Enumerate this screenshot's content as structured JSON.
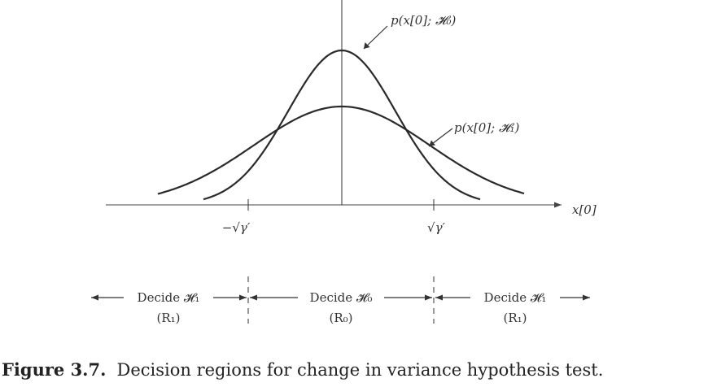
{
  "figure": {
    "labels": {
      "h0_curve": "p(x[0]; 𝓗₀)",
      "h1_curve": "p(x[0]; 𝓗₁)",
      "x_axis": "x[0]",
      "neg_threshold": "−√γ′",
      "pos_threshold": "√γ′"
    },
    "regions": [
      {
        "decide": "Decide 𝓗₁",
        "region": "(R₁)"
      },
      {
        "decide": "Decide 𝓗₀",
        "region": "(R₀)"
      },
      {
        "decide": "Decide 𝓗₁",
        "region": "(R₁)"
      }
    ],
    "caption": {
      "label": "Figure 3.7.",
      "text": "Decision regions for change in variance hypothesis test."
    },
    "colors": {
      "curves": "#2a2a2a",
      "text": "#333333"
    }
  }
}
